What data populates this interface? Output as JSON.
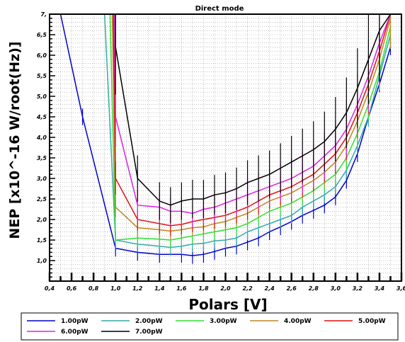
{
  "chart_data": {
    "type": "line",
    "title": "Direct mode",
    "xlabel": "Polars [V]",
    "ylabel": "NEP [x10^-16 W/root(Hz)]",
    "xlim": [
      0.4,
      3.6
    ],
    "ylim": [
      0.5,
      7.0
    ],
    "grid": true,
    "legend_position": "bottom",
    "xticks": [
      "0,4",
      "0,6",
      "0,8",
      "1,0",
      "1,2",
      "1,4",
      "1,6",
      "1,8",
      "2,0",
      "2,2",
      "2,4",
      "2,6",
      "2,8",
      "3,0",
      "3,2",
      "3,4",
      "3,6"
    ],
    "yticks": [
      "1,0",
      "1,5",
      "2,0",
      "2,5",
      "3,0",
      "3,5",
      "4,0",
      "4,5",
      "5,0",
      "5,5",
      "6,0",
      "6,5",
      "7,"
    ],
    "series": [
      {
        "name": "1.00pW",
        "color": "#0000cc",
        "x": [
          0.5,
          0.7,
          1.0,
          1.2,
          1.4,
          1.6,
          1.7,
          1.8,
          1.9,
          2.0,
          2.1,
          2.2,
          2.3,
          2.4,
          2.5,
          2.6,
          2.7,
          2.8,
          2.9,
          3.0,
          3.1,
          3.2,
          3.3,
          3.4,
          3.5
        ],
        "y": [
          7.0,
          4.5,
          1.3,
          1.2,
          1.15,
          1.15,
          1.12,
          1.15,
          1.22,
          1.3,
          1.35,
          1.45,
          1.55,
          1.7,
          1.82,
          1.95,
          2.1,
          2.22,
          2.35,
          2.55,
          2.95,
          3.6,
          4.5,
          5.3,
          6.2
        ]
      },
      {
        "name": "2.00pW",
        "color": "#33aaaa",
        "x": [
          0.9,
          1.0,
          1.2,
          1.4,
          1.5,
          1.6,
          1.7,
          1.8,
          1.9,
          2.0,
          2.1,
          2.2,
          2.3,
          2.4,
          2.5,
          2.6,
          2.7,
          2.8,
          2.9,
          3.0,
          3.1,
          3.2,
          3.3,
          3.4,
          3.5
        ],
        "y": [
          7.0,
          1.5,
          1.4,
          1.35,
          1.32,
          1.35,
          1.4,
          1.42,
          1.48,
          1.5,
          1.55,
          1.7,
          1.8,
          1.9,
          2.0,
          2.1,
          2.3,
          2.45,
          2.6,
          2.8,
          3.2,
          3.8,
          4.5,
          5.5,
          6.5
        ]
      },
      {
        "name": "3.00pW",
        "color": "#33dd33",
        "x": [
          0.95,
          1.0,
          1.2,
          1.4,
          1.5,
          1.6,
          1.7,
          1.8,
          1.9,
          2.0,
          2.1,
          2.2,
          2.3,
          2.4,
          2.5,
          2.6,
          2.7,
          2.8,
          2.9,
          3.0,
          3.1,
          3.2,
          3.3,
          3.4,
          3.5
        ],
        "y": [
          7.0,
          1.5,
          1.55,
          1.52,
          1.5,
          1.55,
          1.6,
          1.65,
          1.7,
          1.75,
          1.8,
          1.9,
          2.05,
          2.2,
          2.3,
          2.4,
          2.55,
          2.7,
          2.9,
          3.1,
          3.5,
          4.1,
          4.8,
          5.6,
          6.7
        ]
      },
      {
        "name": "4.00pW",
        "color": "#bb8822",
        "x": [
          0.97,
          1.0,
          1.2,
          1.4,
          1.5,
          1.6,
          1.7,
          1.8,
          1.9,
          2.0,
          2.1,
          2.2,
          2.3,
          2.4,
          2.5,
          2.6,
          2.7,
          2.8,
          2.9,
          3.0,
          3.1,
          3.2,
          3.3,
          3.4,
          3.5
        ],
        "y": [
          7.0,
          2.3,
          1.8,
          1.75,
          1.72,
          1.75,
          1.8,
          1.82,
          1.9,
          1.95,
          2.05,
          2.15,
          2.3,
          2.45,
          2.55,
          2.65,
          2.8,
          2.95,
          3.15,
          3.4,
          3.8,
          4.4,
          5.1,
          5.9,
          6.9
        ]
      },
      {
        "name": "5.00pW",
        "color": "#dd1111",
        "x": [
          0.98,
          1.0,
          1.2,
          1.4,
          1.5,
          1.6,
          1.7,
          1.8,
          1.9,
          2.0,
          2.1,
          2.2,
          2.3,
          2.4,
          2.5,
          2.6,
          2.7,
          2.8,
          2.9,
          3.0,
          3.1,
          3.2,
          3.3,
          3.4,
          3.5
        ],
        "y": [
          7.0,
          3.0,
          2.0,
          1.9,
          1.85,
          1.88,
          1.95,
          2.0,
          2.05,
          2.1,
          2.2,
          2.3,
          2.45,
          2.6,
          2.7,
          2.8,
          2.95,
          3.1,
          3.35,
          3.6,
          4.0,
          4.6,
          5.3,
          6.1,
          7.0
        ]
      },
      {
        "name": "6.00pW",
        "color": "#dd22dd",
        "x": [
          0.99,
          1.0,
          1.2,
          1.4,
          1.5,
          1.6,
          1.7,
          1.8,
          1.9,
          2.0,
          2.1,
          2.2,
          2.3,
          2.4,
          2.5,
          2.6,
          2.7,
          2.8,
          2.9,
          3.0,
          3.1,
          3.2,
          3.3,
          3.4,
          3.5
        ],
        "y": [
          7.0,
          4.5,
          2.35,
          2.3,
          2.2,
          2.2,
          2.15,
          2.25,
          2.3,
          2.4,
          2.5,
          2.6,
          2.7,
          2.8,
          2.9,
          3.0,
          3.15,
          3.3,
          3.55,
          3.8,
          4.2,
          4.8,
          5.5,
          6.3,
          7.0
        ]
      },
      {
        "name": "7.00pW",
        "color": "#000000",
        "x": [
          1.0,
          1.0,
          1.2,
          1.4,
          1.5,
          1.6,
          1.7,
          1.8,
          1.9,
          2.0,
          2.1,
          2.2,
          2.3,
          2.4,
          2.5,
          2.6,
          2.7,
          2.8,
          2.9,
          3.0,
          3.1,
          3.2,
          3.3,
          3.4,
          3.5
        ],
        "y": [
          7.0,
          6.2,
          3.0,
          2.45,
          2.35,
          2.45,
          2.5,
          2.5,
          2.6,
          2.65,
          2.75,
          2.9,
          3.0,
          3.1,
          3.25,
          3.4,
          3.55,
          3.7,
          3.9,
          4.2,
          4.6,
          5.2,
          5.9,
          6.6,
          7.0
        ]
      }
    ]
  }
}
